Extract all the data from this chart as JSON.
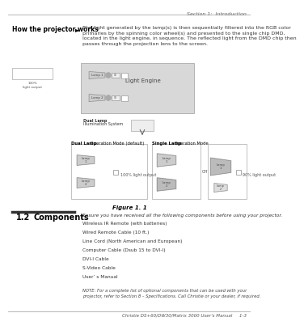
{
  "page_bg": "#ffffff",
  "header_text": "Section 1:  Introduction",
  "footer_text": "Christie DS+60/DW30/Matrix 3000 User’s Manual     1-3",
  "section_label": "How the projector works",
  "arrow_char": "►",
  "body_text": "The light generated by the lamp(s) is then sequentially filtered into the RGB color\nprimaries by the spinning color wheel(s) and presented to the single chip DMD,\nlocated in the light engine, in sequence. The reflected light from the DMD chip then\npasses through the projection lens to the screen.",
  "figure_caption": "Figure 1. 1",
  "section2_num": "1.2",
  "section2_title": "Components",
  "components_intro": "Ensure you have received all the following components before using your projector.",
  "components_list": [
    "Wireless IR Remote (with batteries)",
    "Wired Remote Cable (10 ft.)",
    "Line Cord (North American and European)",
    "Computer Cable (Dsub 15 to DVI-I)",
    "DVI-I Cable",
    "S-Video Cable",
    "User’ s Manual"
  ],
  "note_text": "NOTE: For a complete list of optional components that can be used with your\nprojector, refer to Section 8 – Specifications. Call Christie or your dealer, if required.",
  "diagram_title_dual_bold": "Dual Lamp",
  "diagram_title_dual_rest": " Operation Mode (default)",
  "diagram_title_single_bold": "Single Lamp",
  "diagram_title_single_rest": " Operation Mode",
  "dual_label": "100% light output",
  "single_label": "90% light output",
  "dual_lamp_label": "Dual Lamp\nIllumination System",
  "small_box_label1": "Lamp 1",
  "small_box_label2": "100% light output"
}
